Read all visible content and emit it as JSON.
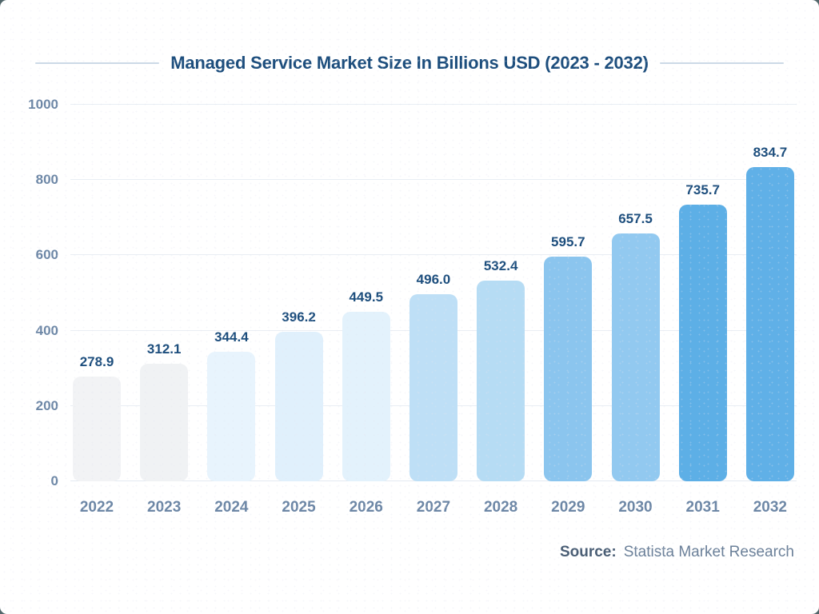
{
  "page": {
    "title": "Managed Service Market Size In Billions USD (2023 - 2032)",
    "source_label": "Source:",
    "source_text": "Statista Market Research"
  },
  "colors": {
    "title": "#1d4e7d",
    "value_label": "#1d4e7d",
    "axis_label": "#6d87a6",
    "gridline": "#e9eef4",
    "baseline": "#e3eaf1",
    "title_line": "#ccd9e6",
    "source_label": "#4a5e75",
    "source_text": "#6b8099",
    "background": "#ffffff"
  },
  "chart_data": {
    "type": "bar",
    "title": "Managed Service Market Size In Billions USD (2023 - 2032)",
    "categories": [
      "2022",
      "2023",
      "2024",
      "2025",
      "2026",
      "2027",
      "2028",
      "2029",
      "2030",
      "2031",
      "2032"
    ],
    "values": [
      278.9,
      312.1,
      344.4,
      396.2,
      449.5,
      496.0,
      532.4,
      595.7,
      657.5,
      735.7,
      834.7
    ],
    "bar_colors": [
      "#f2f3f5",
      "#f0f2f4",
      "#e8f4fd",
      "#e0f0fc",
      "#e3f2fc",
      "#bedff6",
      "#b6dcf4",
      "#8bc5ee",
      "#92c9f0",
      "#5dafe6",
      "#60b0e7"
    ],
    "xlabel": "",
    "ylabel": "",
    "ylim": [
      0,
      1000
    ],
    "yticks": [
      0,
      200,
      400,
      600,
      800,
      1000
    ],
    "grid": true,
    "legend": "none",
    "value_labels": true,
    "value_label_decimals": 1,
    "source": "Statista Market Research"
  }
}
